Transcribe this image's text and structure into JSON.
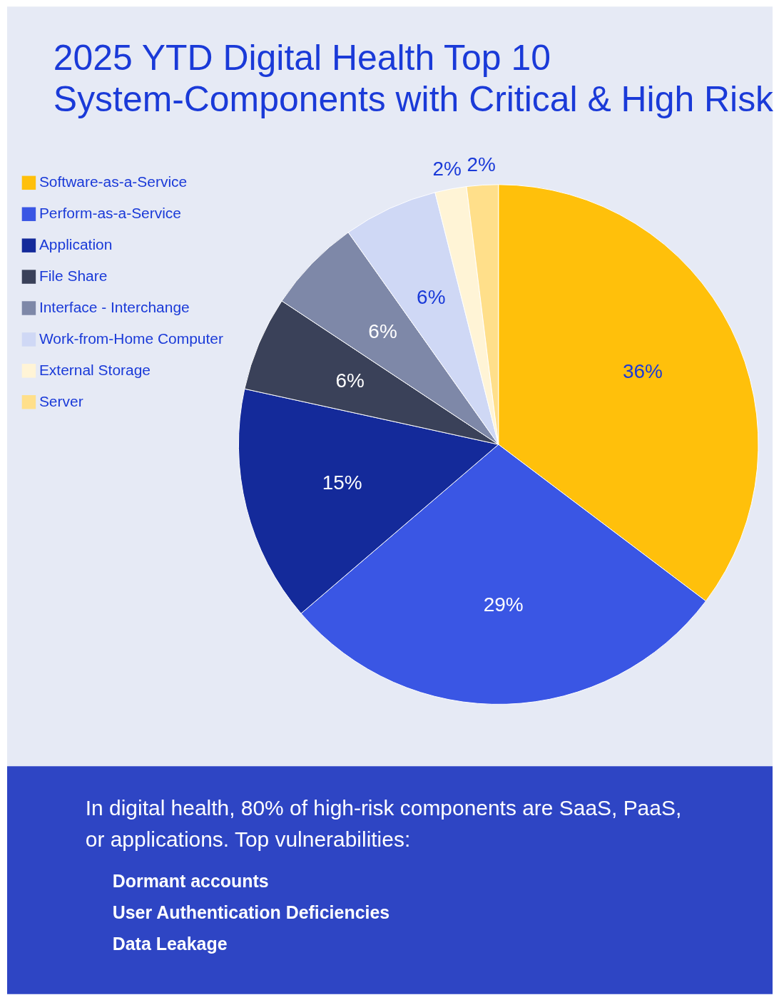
{
  "chart_data": {
    "type": "pie",
    "title": "2025 YTD Digital Health Top 10 System-Components with Critical & High Risk",
    "categories": [
      "Software-as-a-Service",
      "Perform-as-a-Service",
      "Application",
      "File Share",
      "Interface - Interchange",
      "Work-from-Home Computer",
      "External Storage",
      "Server"
    ],
    "values": [
      36,
      29,
      15,
      6,
      6,
      6,
      2,
      2
    ],
    "value_labels": [
      "36%",
      "29%",
      "15%",
      "6%",
      "6%",
      "6%",
      "2%",
      "2%"
    ],
    "colors": [
      "#ffc00b",
      "#3a56e4",
      "#142a9a",
      "#3a4159",
      "#7e88a8",
      "#cfd8f5",
      "#fff4d6",
      "#ffdf8a"
    ],
    "legend": "left",
    "annotations": [
      "In digital health, 80% of high-risk components are SaaS, PaaS, or applications. Top vulnerabilities:",
      "Dormant accounts",
      "User Authentication Deficiencies",
      "Data Leakage"
    ]
  }
}
